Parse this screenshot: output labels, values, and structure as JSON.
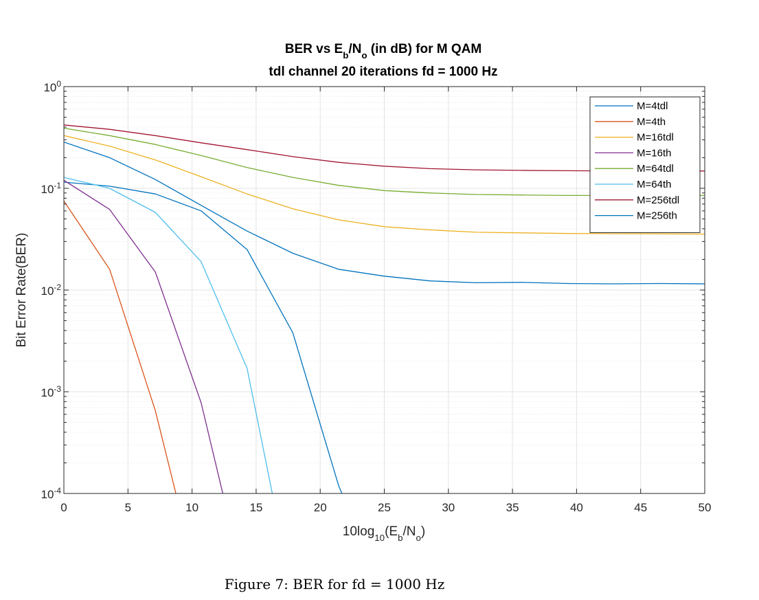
{
  "chart_data": {
    "type": "line",
    "title_parts": [
      "BER vs E",
      "b",
      "/N",
      "o",
      " (in dB) for M QAM"
    ],
    "subtitle": "tdl channel 20 iterations fd = 1000 Hz",
    "xlabel_parts": [
      "10log",
      "10",
      "(E",
      "b",
      "/N",
      "o",
      ")"
    ],
    "ylabel": "Bit Error Rate(BER)",
    "xlim": [
      0,
      50
    ],
    "ylim": [
      0.0001,
      1
    ],
    "yscale": "log",
    "grid": true,
    "minor_grid": true,
    "legend_position": "top-right",
    "x_ticks": [
      0,
      5,
      10,
      15,
      20,
      25,
      30,
      35,
      40,
      45,
      50
    ],
    "x_tick_labels": [
      "0",
      "5",
      "10",
      "15",
      "20",
      "25",
      "30",
      "35",
      "40",
      "45",
      "50"
    ],
    "y_ticks": [
      {
        "value": 1,
        "base": "10",
        "exp": "0"
      },
      {
        "value": 0.1,
        "base": "10",
        "exp": "-1"
      },
      {
        "value": 0.01,
        "base": "10",
        "exp": "-2"
      },
      {
        "value": 0.001,
        "base": "10",
        "exp": "-3"
      },
      {
        "value": 0.0001,
        "base": "10",
        "exp": "-4"
      }
    ],
    "x": [
      0,
      3.57,
      7.14,
      10.71,
      14.29,
      17.86,
      21.43,
      25,
      28.57,
      32.14,
      35.71,
      39.29,
      42.86,
      46.43,
      50
    ],
    "series": [
      {
        "name": "M=4tdl",
        "color": "#0072BD",
        "values": [
          0.115,
          0.105,
          0.088,
          0.06,
          0.025,
          0.0038,
          0.00012,
          1e-05,
          null,
          null,
          null,
          null,
          null,
          null,
          null
        ]
      },
      {
        "name": "M=4th",
        "color": "#D95319",
        "values": [
          0.075,
          0.016,
          0.00065,
          1e-05,
          null,
          null,
          null,
          null,
          null,
          null,
          null,
          null,
          null,
          null,
          null
        ]
      },
      {
        "name": "M=16tdl",
        "color": "#EDB120",
        "values": [
          0.33,
          0.26,
          0.19,
          0.13,
          0.088,
          0.063,
          0.049,
          0.042,
          0.039,
          0.037,
          0.0365,
          0.036,
          0.0358,
          0.0357,
          0.0355
        ]
      },
      {
        "name": "M=16th",
        "color": "#7E2F8E",
        "values": [
          0.12,
          0.062,
          0.015,
          0.00078,
          1e-05,
          null,
          null,
          null,
          null,
          null,
          null,
          null,
          null,
          null,
          null
        ]
      },
      {
        "name": "M=64tdl",
        "color": "#77AC30",
        "values": [
          0.39,
          0.33,
          0.27,
          0.21,
          0.16,
          0.128,
          0.107,
          0.095,
          0.09,
          0.087,
          0.086,
          0.085,
          0.085,
          0.085,
          0.085
        ]
      },
      {
        "name": "M=64th",
        "color": "#4DBEEE",
        "values": [
          0.128,
          0.1,
          0.058,
          0.019,
          0.0017,
          1e-05,
          null,
          null,
          null,
          null,
          null,
          null,
          null,
          null,
          null
        ]
      },
      {
        "name": "M=256tdl",
        "color": "#A2142F",
        "values": [
          0.42,
          0.38,
          0.33,
          0.28,
          0.24,
          0.205,
          0.18,
          0.165,
          0.156,
          0.152,
          0.15,
          0.149,
          0.148,
          0.148,
          0.148
        ]
      },
      {
        "name": "M=256th",
        "color": "#0072BD",
        "values": [
          0.285,
          0.2,
          0.122,
          0.068,
          0.038,
          0.023,
          0.016,
          0.0137,
          0.0123,
          0.0118,
          0.0119,
          0.0116,
          0.0115,
          0.0116,
          0.0115
        ]
      }
    ]
  },
  "caption": "Figure 7: BER for fd = 1000 Hz"
}
